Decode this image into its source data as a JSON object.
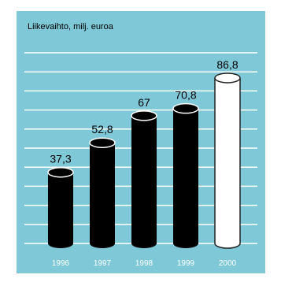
{
  "chart_data": {
    "type": "bar",
    "title": "Liikevaihto, milj. euroa",
    "categories": [
      "1996",
      "1997",
      "1998",
      "1999",
      "2000"
    ],
    "values": [
      37.3,
      52.8,
      67,
      70.8,
      86.8
    ],
    "value_labels": [
      "37,3",
      "52,8",
      "67",
      "70,8",
      "86,8"
    ],
    "ylim": [
      0,
      100
    ],
    "grid": true,
    "bar_style": "3d-cylinder",
    "colors": {
      "background": "#7ec8d8",
      "bar": "#000000",
      "highlight_bar": "#ffffff",
      "gridline": "#ffffff",
      "tick_label": "#ffffff",
      "value_label": "#000000"
    }
  }
}
